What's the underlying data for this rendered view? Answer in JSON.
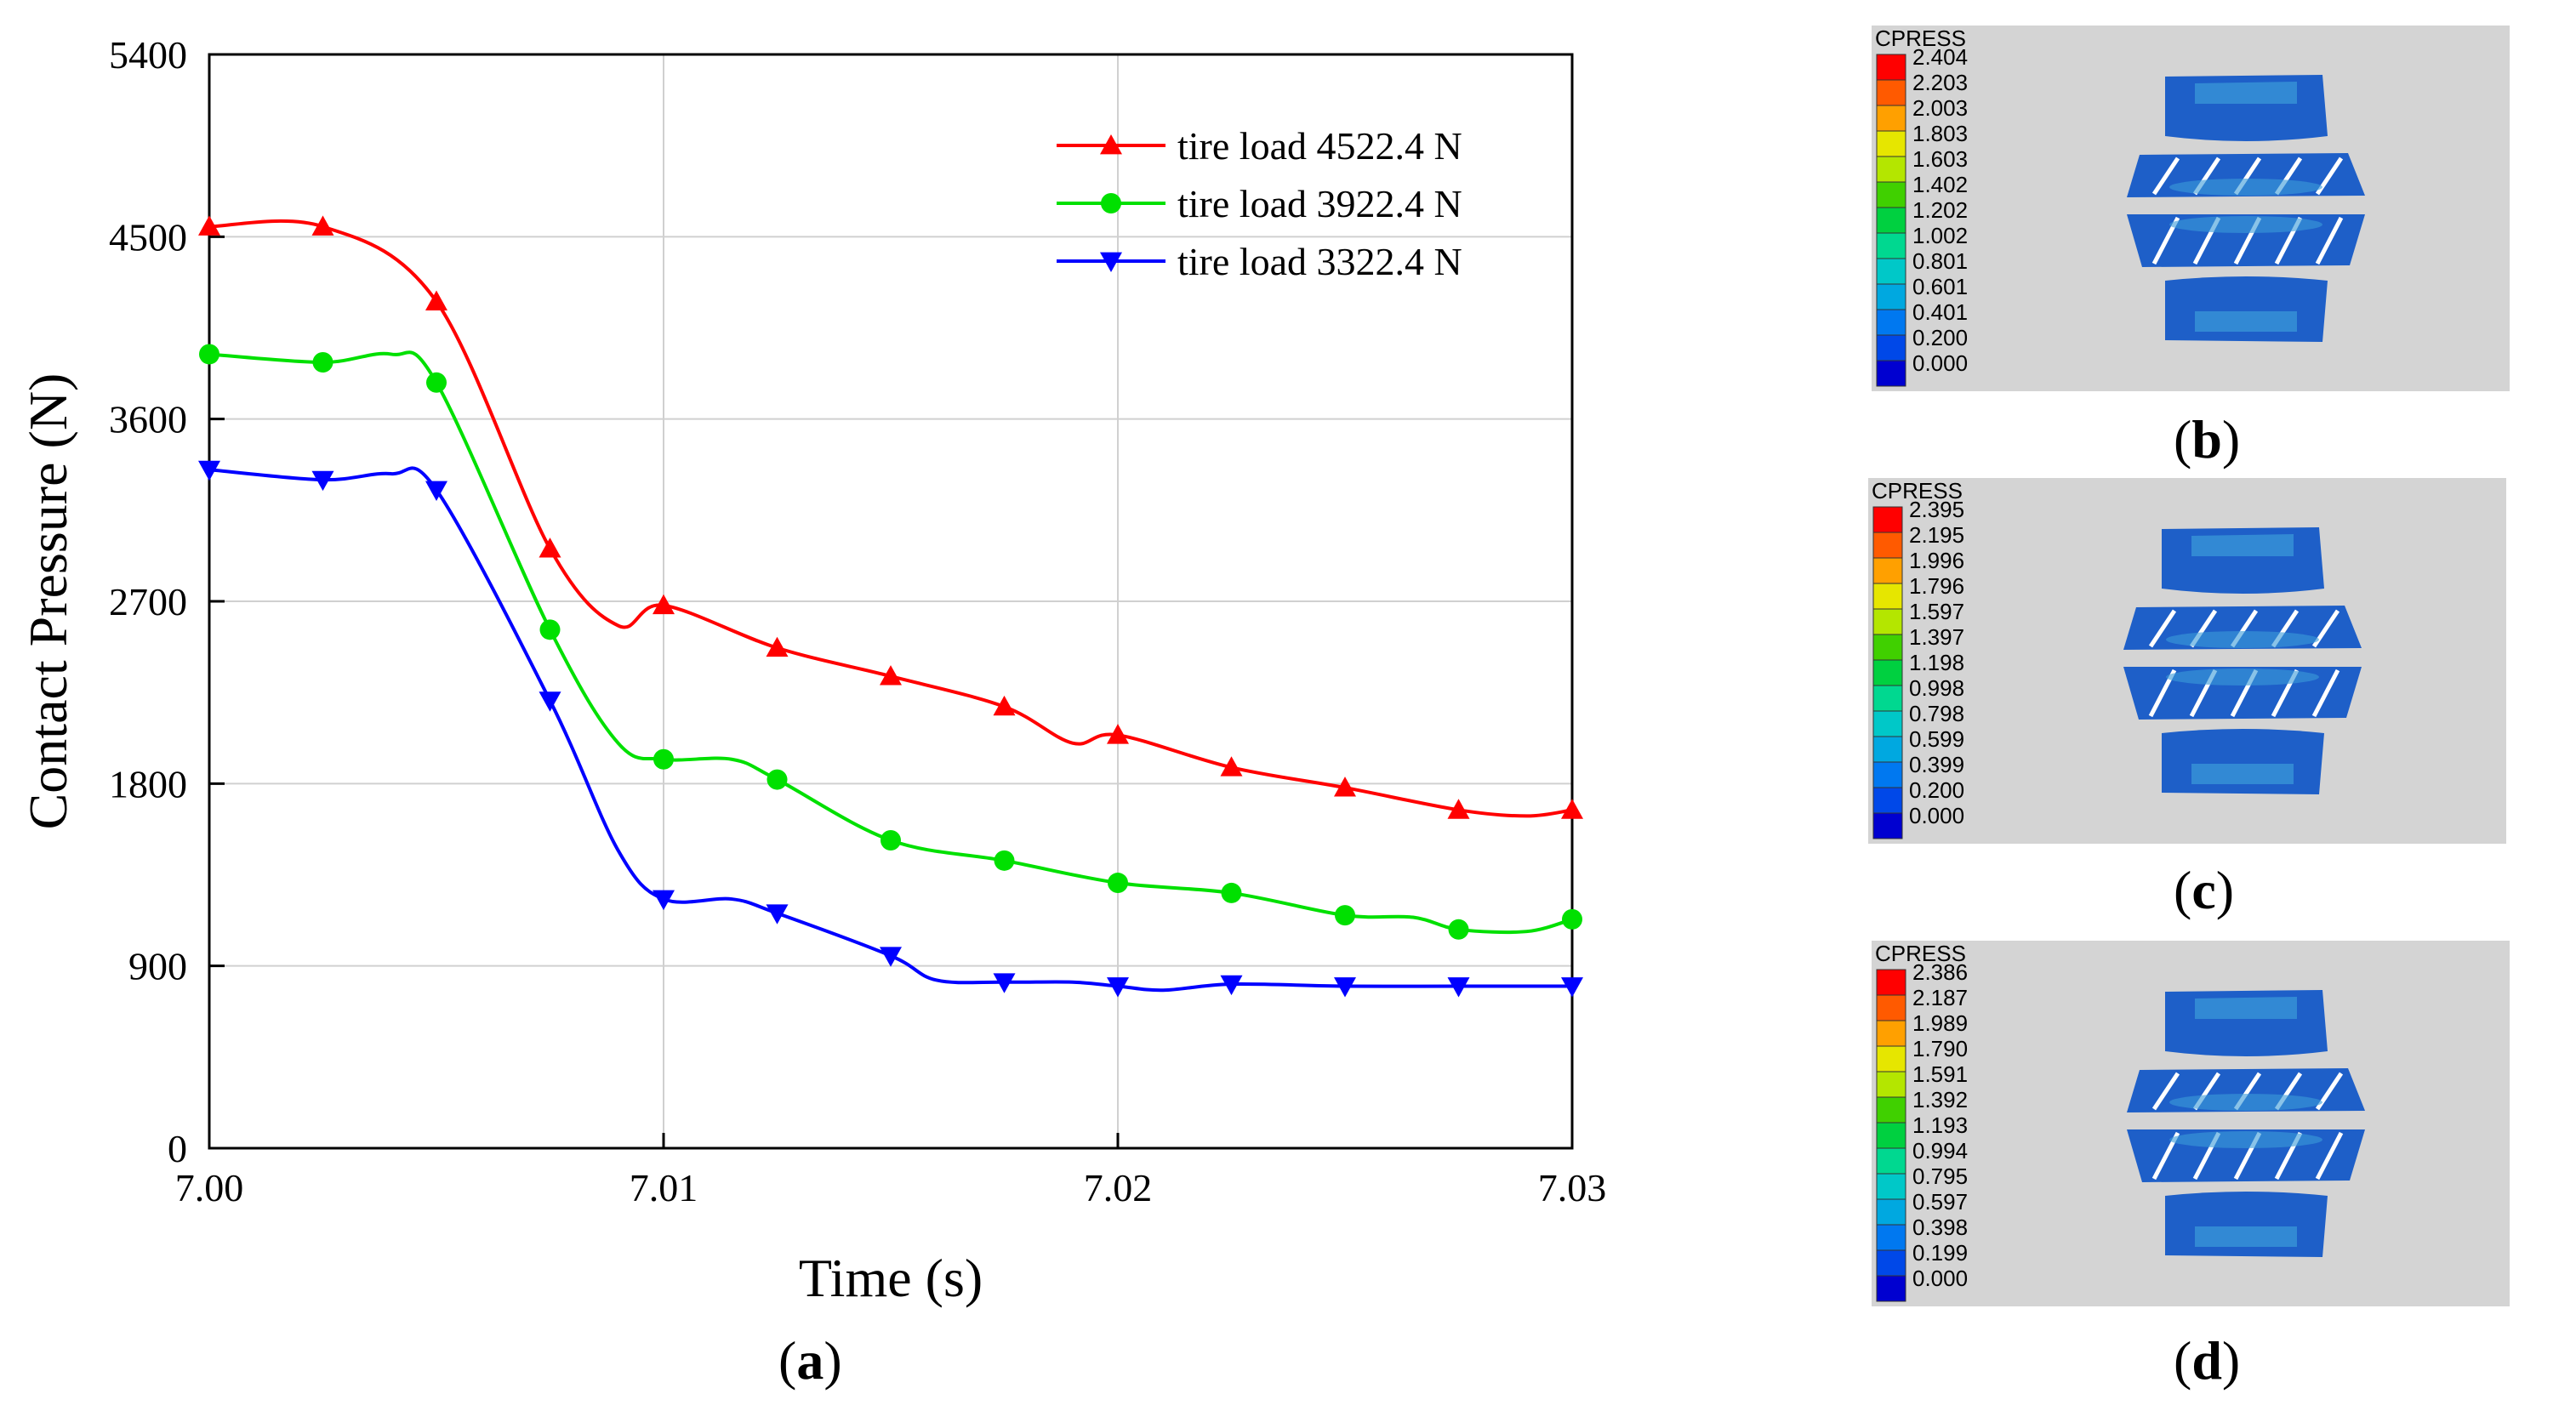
{
  "chart_data": {
    "type": "line",
    "ylabel": "Contact Pressure (N)",
    "xlabel": "Time (s)",
    "xlim": [
      7.0,
      7.03
    ],
    "ylim": [
      0,
      5400
    ],
    "xticks": [
      "7.00",
      "7.01",
      "7.02",
      "7.03"
    ],
    "xtick_values": [
      7.0,
      7.01,
      7.02,
      7.03
    ],
    "yticks": [
      "0",
      "900",
      "1800",
      "2700",
      "3600",
      "4500",
      "5400"
    ],
    "ytick_values": [
      0,
      900,
      1800,
      2700,
      3600,
      4500,
      5400
    ],
    "grid": true,
    "legend_position": "top-right",
    "series": [
      {
        "name": "tire load 4522.4 N",
        "color": "#ff0000",
        "marker": "triangle-up",
        "x": [
          7.0,
          7.0025,
          7.005,
          7.0075,
          7.009,
          7.01,
          7.0125,
          7.015,
          7.0175,
          7.019,
          7.02,
          7.0225,
          7.025,
          7.0275,
          7.029,
          7.03
        ],
        "values": [
          4550,
          4550,
          4180,
          2960,
          2580,
          2680,
          2470,
          2330,
          2180,
          2000,
          2040,
          1880,
          1780,
          1670,
          1640,
          1670
        ],
        "markers": [
          0,
          1,
          2,
          3,
          5,
          6,
          7,
          8,
          10,
          11,
          12,
          13,
          15
        ]
      },
      {
        "name": "tire load 3922.4 N",
        "color": "#00e000",
        "marker": "circle",
        "x": [
          7.0,
          7.0025,
          7.004,
          7.005,
          7.0075,
          7.009,
          7.01,
          7.0115,
          7.0125,
          7.015,
          7.0175,
          7.02,
          7.0225,
          7.025,
          7.0265,
          7.0275,
          7.029,
          7.03
        ],
        "values": [
          3920,
          3880,
          3920,
          3780,
          2560,
          2000,
          1920,
          1920,
          1820,
          1520,
          1420,
          1310,
          1260,
          1150,
          1140,
          1080,
          1070,
          1130
        ],
        "markers": [
          0,
          1,
          3,
          4,
          6,
          8,
          9,
          10,
          11,
          12,
          13,
          15,
          17
        ]
      },
      {
        "name": "tire load 3322.4 N",
        "color": "#0000ff",
        "marker": "triangle-down",
        "x": [
          7.0,
          7.0025,
          7.004,
          7.005,
          7.0075,
          7.009,
          7.01,
          7.0115,
          7.0125,
          7.015,
          7.016,
          7.0175,
          7.019,
          7.02,
          7.021,
          7.0225,
          7.025,
          7.0275,
          7.03
        ],
        "values": [
          3350,
          3300,
          3330,
          3250,
          2210,
          1470,
          1230,
          1230,
          1160,
          950,
          830,
          820,
          820,
          800,
          780,
          810,
          800,
          800,
          800
        ],
        "markers": [
          0,
          1,
          3,
          4,
          6,
          8,
          9,
          11,
          13,
          15,
          16,
          17,
          18
        ]
      }
    ]
  },
  "captions": {
    "a": "a",
    "b": "b",
    "c": "c",
    "d": "d"
  },
  "panels": [
    {
      "id": "b",
      "title": "CPRESS",
      "legend_values": [
        "2.404",
        "2.203",
        "2.003",
        "1.803",
        "1.603",
        "1.402",
        "1.202",
        "1.002",
        "0.801",
        "0.601",
        "0.401",
        "0.200",
        "0.000"
      ]
    },
    {
      "id": "c",
      "title": "CPRESS",
      "legend_values": [
        "2.395",
        "2.195",
        "1.996",
        "1.796",
        "1.597",
        "1.397",
        "1.198",
        "0.998",
        "0.798",
        "0.599",
        "0.399",
        "0.200",
        "0.000"
      ]
    },
    {
      "id": "d",
      "title": "CPRESS",
      "legend_values": [
        "2.386",
        "2.187",
        "1.989",
        "1.790",
        "1.591",
        "1.392",
        "1.193",
        "0.994",
        "0.795",
        "0.597",
        "0.398",
        "0.199",
        "0.000"
      ]
    }
  ],
  "colors": {
    "panel_bg": "#d4d4d4",
    "grid": "#d0d0d0",
    "contour_scale": [
      "#ff0000",
      "#ff5a00",
      "#ffa000",
      "#e6e600",
      "#b4e600",
      "#40d000",
      "#00d040",
      "#00d890",
      "#00c8c8",
      "#00a8e0",
      "#0078f0",
      "#0048e8",
      "#0000d0"
    ],
    "tread": "#1e5fc8",
    "tread_light": "#3a9bd8"
  }
}
